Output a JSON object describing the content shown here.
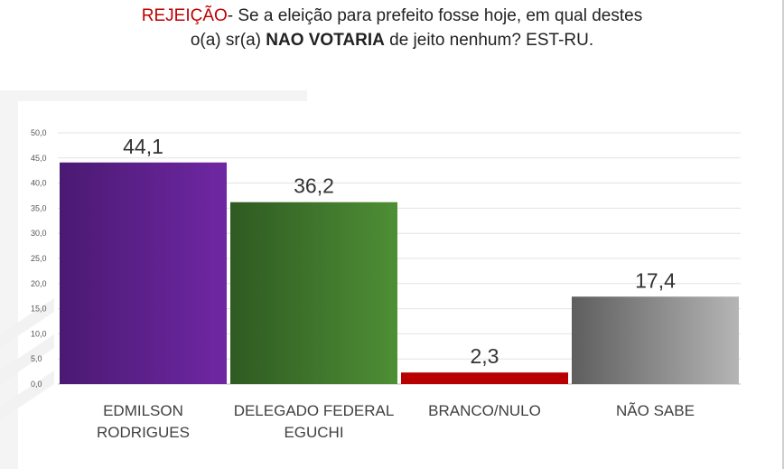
{
  "title": {
    "prefix": "REJEIÇÃO",
    "line1_rest": "- Se a eleição para prefeito fosse hoje, em qual destes",
    "line2_start": "o(a) sr(a) ",
    "line2_bold": "NAO VOTARIA",
    "line2_end": " de jeito nenhum? EST-RU."
  },
  "chart_data": {
    "type": "bar",
    "categories": [
      [
        "EDMILSON",
        "RODRIGUES"
      ],
      [
        "DELEGADO FEDERAL",
        "EGUCHI"
      ],
      [
        "BRANCO/NULO"
      ],
      [
        "NÃO SABE"
      ]
    ],
    "values": [
      44.1,
      36.2,
      2.3,
      17.4
    ],
    "value_labels": [
      "44,1",
      "36,2",
      "2,3",
      "17,4"
    ],
    "y_ticks": [
      "0,0",
      "5,0",
      "10,0",
      "15,0",
      "20,0",
      "25,0",
      "30,0",
      "35,0",
      "40,0",
      "45,0",
      "50,0"
    ],
    "ylim": [
      0,
      50
    ],
    "grid": true,
    "bar_colors": [
      [
        "#4a1a72",
        "#6f27a3"
      ],
      [
        "#2f5a22",
        "#4e8f35"
      ],
      [
        "#b80000",
        "#b80000"
      ],
      [
        "#5e5e5e",
        "#b5b5b5"
      ]
    ]
  }
}
